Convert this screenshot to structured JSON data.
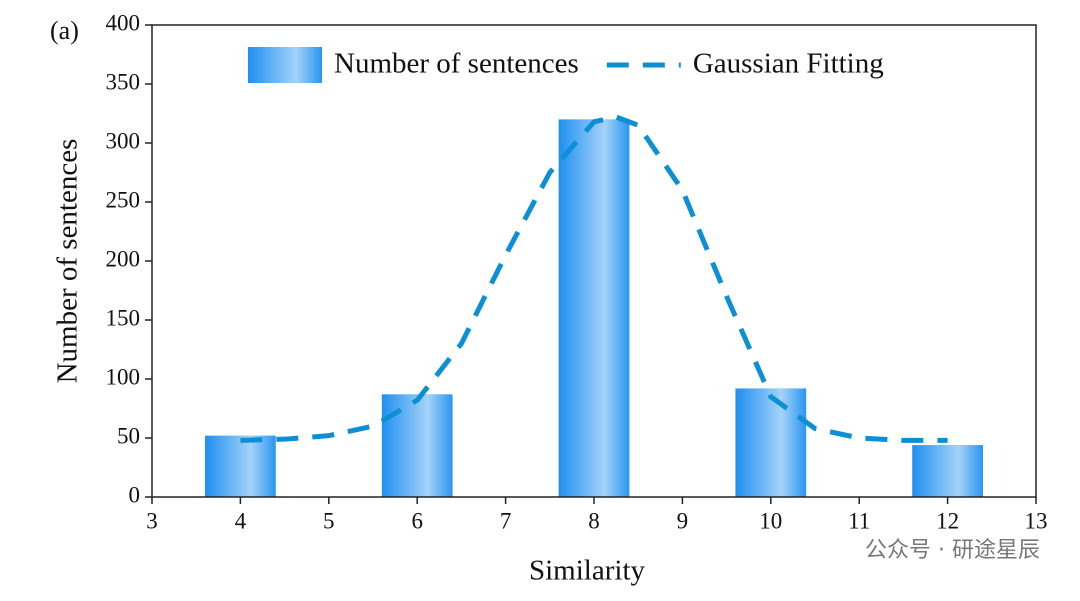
{
  "chart_data": {
    "type": "bar",
    "panel_label": "(a)",
    "watermark": "公众号 · 研途星辰",
    "x_label": "Similarity",
    "y_label": "Number of sentences",
    "xlim": [
      3,
      13
    ],
    "xticks": [
      3,
      4,
      5,
      6,
      7,
      8,
      9,
      10,
      11,
      12,
      13
    ],
    "ylim": [
      0,
      400
    ],
    "yticks": [
      0,
      50,
      100,
      150,
      200,
      250,
      300,
      350,
      400
    ],
    "legend": "top",
    "series": [
      {
        "name": "Number of sentences",
        "type": "bar",
        "color": "#1e90f0",
        "x": [
          4,
          6,
          8,
          10,
          12
        ],
        "values": [
          52,
          87,
          320,
          92,
          44
        ]
      },
      {
        "name": "Gaussian Fitting",
        "type": "line",
        "color": "#0d8fd6",
        "x": [
          4,
          4.5,
          5,
          5.5,
          6,
          6.5,
          7,
          7.5,
          8,
          8.25,
          8.5,
          9,
          9.5,
          10,
          10.5,
          11,
          11.5,
          12
        ],
        "values": [
          48,
          49,
          52,
          60,
          82,
          130,
          205,
          275,
          318,
          322,
          315,
          260,
          170,
          85,
          58,
          50,
          48,
          48
        ]
      }
    ]
  }
}
